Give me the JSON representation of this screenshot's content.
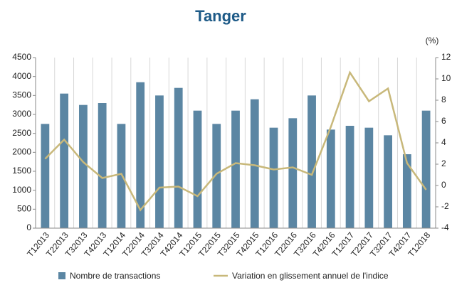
{
  "chart_data": {
    "type": "bar",
    "title": "Tanger",
    "y2_label": "(%)",
    "categories": [
      "T12013",
      "T22013",
      "T32013",
      "T42013",
      "T12014",
      "T22014",
      "T32014",
      "T42014",
      "T12015",
      "T22015",
      "T32015",
      "T42015",
      "T12016",
      "T22016",
      "T32016",
      "T42016",
      "T12017",
      "T22017",
      "T32017",
      "T42017",
      "T12018"
    ],
    "series": [
      {
        "name": "Nombre de transactions",
        "type": "bar",
        "color": "#5b86a3",
        "values": [
          2750,
          3550,
          3250,
          3300,
          2750,
          3850,
          3500,
          3700,
          3100,
          2750,
          3100,
          3400,
          2650,
          2900,
          3500,
          2600,
          2700,
          2650,
          2450,
          1950,
          3100
        ]
      },
      {
        "name": "Variation en glissement annuel de l'indice",
        "type": "line",
        "axis": "y2",
        "color": "#c8b87a",
        "values": [
          2.5,
          4.3,
          2.2,
          0.7,
          1.1,
          -2.3,
          -0.2,
          -0.1,
          -1.0,
          1.1,
          2.1,
          1.9,
          1.5,
          1.7,
          1.0,
          5.5,
          10.6,
          7.9,
          9.1,
          2.1,
          -0.4
        ]
      }
    ],
    "ylim": [
      0,
      4500
    ],
    "yticks": [
      0,
      500,
      1000,
      1500,
      2000,
      2500,
      3000,
      3500,
      4000,
      4500
    ],
    "y2lim": [
      -4,
      12
    ],
    "y2ticks": [
      -4,
      -2,
      0,
      2,
      4,
      6,
      8,
      10,
      12
    ],
    "legend": "bottom"
  }
}
